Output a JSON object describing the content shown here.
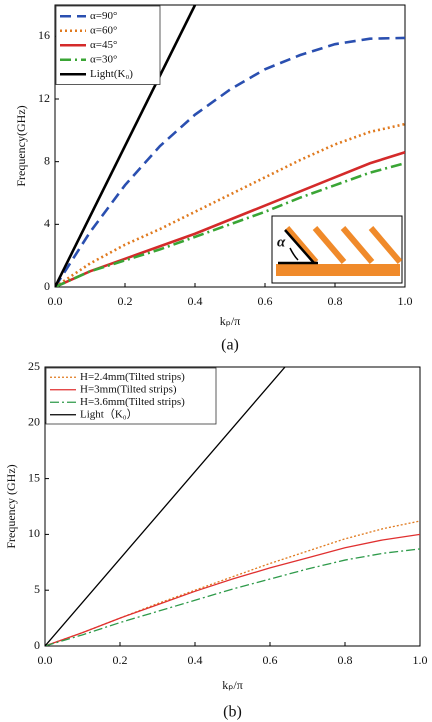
{
  "chart_data": [
    {
      "type": "line",
      "caption": "(a)",
      "x_label": "kₚ/π",
      "y_label": "Frequency(GHz)",
      "annotation": "α",
      "xlim": [
        0,
        1
      ],
      "ylim": [
        0,
        18
      ],
      "xticks": [
        {
          "value": 0,
          "label": "0.0"
        },
        0.2,
        0.4,
        0.6,
        0.8,
        {
          "value": 1,
          "label": "1.0"
        }
      ],
      "yticks": [
        0,
        4,
        8,
        12,
        16
      ],
      "legend": "upper left",
      "x": [
        0,
        0.1,
        0.2,
        0.3,
        0.4,
        0.5,
        0.6,
        0.7,
        0.8,
        0.9,
        1
      ],
      "series": [
        {
          "name": "α=90°",
          "color": "#2a4fb0",
          "dash": "dashed",
          "values": [
            0,
            3.5,
            6.5,
            9,
            11,
            12.6,
            13.9,
            14.8,
            15.5,
            15.85,
            15.9
          ]
        },
        {
          "name": "α=60°",
          "color": "#e07a1f",
          "dash": "dotted",
          "values": [
            0,
            1.5,
            2.7,
            3.7,
            4.8,
            5.9,
            7,
            8.1,
            9.1,
            9.9,
            10.4
          ]
        },
        {
          "name": "α=45°",
          "color": "#d42a2a",
          "dash": "solid",
          "values": [
            0,
            1,
            1.8,
            2.6,
            3.4,
            4.3,
            5.2,
            6.1,
            7,
            7.9,
            8.6
          ]
        },
        {
          "name": "α=30°",
          "color": "#3aa535",
          "dash": "dashdot",
          "values": [
            0,
            1,
            1.7,
            2.4,
            3.2,
            4,
            4.8,
            5.7,
            6.5,
            7.3,
            7.9
          ]
        },
        {
          "name": "Light(K₀)",
          "color": "#000000",
          "dash": "solid",
          "x": [
            0,
            0.4
          ],
          "values": [
            0,
            18
          ]
        }
      ]
    },
    {
      "type": "line",
      "caption": "(b)",
      "x_label": "kₚ/π",
      "y_label": "Frequency (GHz)",
      "xlim": [
        0,
        1
      ],
      "ylim": [
        0,
        25
      ],
      "xticks": [
        {
          "value": 0,
          "label": "0.0"
        },
        0.2,
        0.4,
        0.6,
        0.8,
        {
          "value": 1,
          "label": "1.0"
        }
      ],
      "yticks": [
        0,
        5,
        10,
        15,
        20,
        25
      ],
      "legend": "upper left",
      "x": [
        0,
        0.1,
        0.2,
        0.3,
        0.4,
        0.5,
        0.6,
        0.7,
        0.8,
        0.9,
        1
      ],
      "series": [
        {
          "name": "H=2.4mm(Tilted strips)",
          "color": "#e07a1f",
          "dash": "dotted",
          "values": [
            0,
            1.2,
            2.5,
            3.8,
            5,
            6.2,
            7.4,
            8.5,
            9.6,
            10.5,
            11.2
          ]
        },
        {
          "name": "H=3mm(Tilted strips)",
          "color": "#e03030",
          "dash": "solid",
          "values": [
            0,
            1.2,
            2.5,
            3.7,
            4.9,
            6,
            7,
            7.9,
            8.8,
            9.5,
            10
          ]
        },
        {
          "name": "H=3.6mm(Tilted strips)",
          "color": "#2e9a4a",
          "dash": "dashdot",
          "values": [
            0,
            1,
            2.1,
            3.1,
            4.1,
            5.1,
            6,
            6.9,
            7.7,
            8.3,
            8.7
          ]
        },
        {
          "name": "Light（K₀）",
          "color": "#000000",
          "dash": "solid",
          "x": [
            0,
            0.64
          ],
          "values": [
            0,
            25
          ]
        }
      ]
    }
  ]
}
